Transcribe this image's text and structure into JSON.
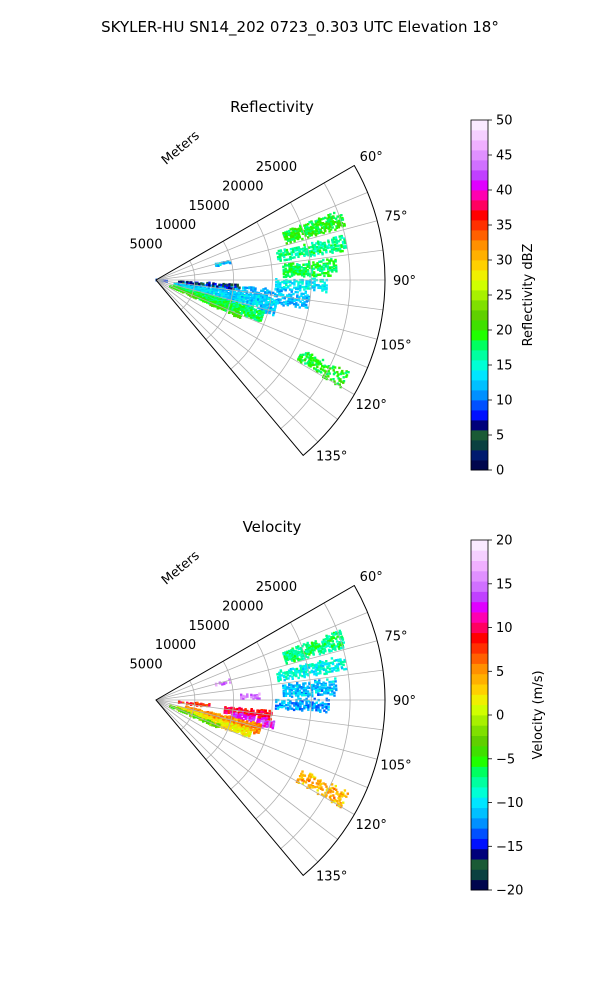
{
  "figure": {
    "title": "SKYLER-HU  SN14_202  0723_0.303 UTC Elevation 18°"
  },
  "chart_data": [
    {
      "type": "heatmap",
      "projection": "polar-sector",
      "title": "Reflectivity",
      "range_label": "Meters",
      "range_ticks": [
        "5000",
        "10000",
        "15000",
        "20000",
        "25000"
      ],
      "range_tick_values": [
        5000,
        10000,
        15000,
        20000,
        25000
      ],
      "rmax": 29500,
      "azimuth_ticks": [
        "60°",
        "75°",
        "90°",
        "105°",
        "120°",
        "135°"
      ],
      "azimuth_tick_values": [
        60,
        75,
        90,
        105,
        120,
        135
      ],
      "azimuth_range": [
        60,
        140
      ],
      "grid": true,
      "colorbar": {
        "label": "Reflectivity dBZ",
        "min": 0,
        "max": 50,
        "ticks": [
          "0",
          "5",
          "10",
          "15",
          "20",
          "25",
          "30",
          "35",
          "40",
          "45",
          "50"
        ],
        "colors": [
          "#00064d",
          "#001a6e",
          "#0a4040",
          "#1a5a35",
          "#00007a",
          "#0010ff",
          "#0050ff",
          "#0090ff",
          "#00c0ff",
          "#00e5ff",
          "#00ffd5",
          "#00ffa0",
          "#00ff60",
          "#20ff00",
          "#40e000",
          "#60d000",
          "#80e000",
          "#a8f000",
          "#d0ff00",
          "#f0f000",
          "#ffd000",
          "#ffb000",
          "#ff9000",
          "#ff6000",
          "#ff3000",
          "#ff0000",
          "#ff0060",
          "#ff00b0",
          "#e000ff",
          "#c040ff",
          "#d070ff",
          "#e090ff",
          "#f0b0ff",
          "#f5d0ff",
          "#faeaff"
        ]
      },
      "echoes": [
        {
          "az": 72,
          "r0": 17500,
          "r1": 25500,
          "w": 2.6,
          "density": 0.75,
          "value": 19
        },
        {
          "az": 79,
          "r0": 16000,
          "r1": 25000,
          "w": 2.3,
          "density": 0.55,
          "value": 17
        },
        {
          "az": 86,
          "r0": 16500,
          "r1": 23500,
          "w": 2.8,
          "density": 0.6,
          "value": 18
        },
        {
          "az": 92,
          "r0": 15500,
          "r1": 22500,
          "w": 2.4,
          "density": 0.5,
          "value": 14
        },
        {
          "az": 98,
          "r0": 3500,
          "r1": 20000,
          "w": 3.5,
          "density": 0.45,
          "value": 12
        },
        {
          "az": 103,
          "r0": 2500,
          "r1": 16000,
          "w": 4.0,
          "density": 0.55,
          "value": 13
        },
        {
          "az": 109,
          "r0": 2500,
          "r1": 14500,
          "w": 3.2,
          "density": 0.7,
          "value": 18
        },
        {
          "az": 113,
          "r0": 2000,
          "r1": 12000,
          "w": 2.0,
          "density": 0.5,
          "value": 20
        },
        {
          "az": 95,
          "r0": 3000,
          "r1": 11000,
          "w": 2.0,
          "density": 0.35,
          "value": 6
        },
        {
          "az": 118,
          "r0": 21000,
          "r1": 27500,
          "w": 2.4,
          "density": 0.45,
          "value": 19
        },
        {
          "az": 76,
          "r0": 8000,
          "r1": 10000,
          "w": 1.5,
          "density": 0.3,
          "value": 13
        },
        {
          "az": 96,
          "r0": 100,
          "r1": 1500,
          "w": 2.5,
          "density": 0.7,
          "value": 9
        }
      ]
    },
    {
      "type": "heatmap",
      "projection": "polar-sector",
      "title": "Velocity",
      "range_label": "Meters",
      "range_ticks": [
        "5000",
        "10000",
        "15000",
        "20000",
        "25000"
      ],
      "range_tick_values": [
        5000,
        10000,
        15000,
        20000,
        25000
      ],
      "rmax": 29500,
      "azimuth_ticks": [
        "60°",
        "75°",
        "90°",
        "105°",
        "120°",
        "135°"
      ],
      "azimuth_tick_values": [
        60,
        75,
        90,
        105,
        120,
        135
      ],
      "azimuth_range": [
        60,
        140
      ],
      "grid": true,
      "colorbar": {
        "label": "Velocity (m/s)",
        "min": -20,
        "max": 20,
        "ticks": [
          "−20",
          "−15",
          "−10",
          "−5",
          "0",
          "5",
          "10",
          "15",
          "20"
        ],
        "colors": [
          "#00064d",
          "#0a4040",
          "#1a5a35",
          "#00007a",
          "#0010ff",
          "#0050ff",
          "#0090ff",
          "#00c0ff",
          "#00e5ff",
          "#00ffd5",
          "#00ffa0",
          "#00ff60",
          "#20ff00",
          "#40e000",
          "#60d000",
          "#80e000",
          "#a8f000",
          "#d0ff00",
          "#f0f000",
          "#ffd000",
          "#ffb000",
          "#ff9000",
          "#ff6000",
          "#ff3000",
          "#ff0000",
          "#ff0060",
          "#ff00b0",
          "#e000ff",
          "#c040ff",
          "#d070ff",
          "#e090ff",
          "#f0b0ff",
          "#f5d0ff",
          "#faeaff"
        ]
      },
      "echoes": [
        {
          "az": 72,
          "r0": 17500,
          "r1": 25500,
          "w": 2.6,
          "density": 0.75,
          "value": -7
        },
        {
          "az": 79,
          "r0": 16000,
          "r1": 25000,
          "w": 2.3,
          "density": 0.55,
          "value": -9
        },
        {
          "az": 86,
          "r0": 16500,
          "r1": 23500,
          "w": 2.8,
          "density": 0.6,
          "value": -11
        },
        {
          "az": 92,
          "r0": 15500,
          "r1": 22500,
          "w": 2.4,
          "density": 0.5,
          "value": -12
        },
        {
          "az": 98,
          "r0": 9000,
          "r1": 15000,
          "w": 2.5,
          "density": 0.7,
          "value": 9
        },
        {
          "az": 102,
          "r0": 10000,
          "r1": 15500,
          "w": 2.5,
          "density": 0.55,
          "value": 13
        },
        {
          "az": 106,
          "r0": 4000,
          "r1": 14000,
          "w": 3.2,
          "density": 0.7,
          "value": 5
        },
        {
          "az": 110,
          "r0": 3000,
          "r1": 13000,
          "w": 2.8,
          "density": 0.75,
          "value": 2
        },
        {
          "az": 113,
          "r0": 2000,
          "r1": 9000,
          "w": 1.6,
          "density": 0.5,
          "value": -3
        },
        {
          "az": 118,
          "r0": 21000,
          "r1": 27500,
          "w": 2.4,
          "density": 0.45,
          "value": 4
        },
        {
          "az": 76,
          "r0": 8000,
          "r1": 10000,
          "w": 1.5,
          "density": 0.3,
          "value": 15
        },
        {
          "az": 96,
          "r0": 3000,
          "r1": 7000,
          "w": 2.0,
          "density": 0.35,
          "value": 8
        },
        {
          "az": 88,
          "r0": 11000,
          "r1": 13500,
          "w": 1.5,
          "density": 0.4,
          "value": 15
        }
      ]
    }
  ]
}
